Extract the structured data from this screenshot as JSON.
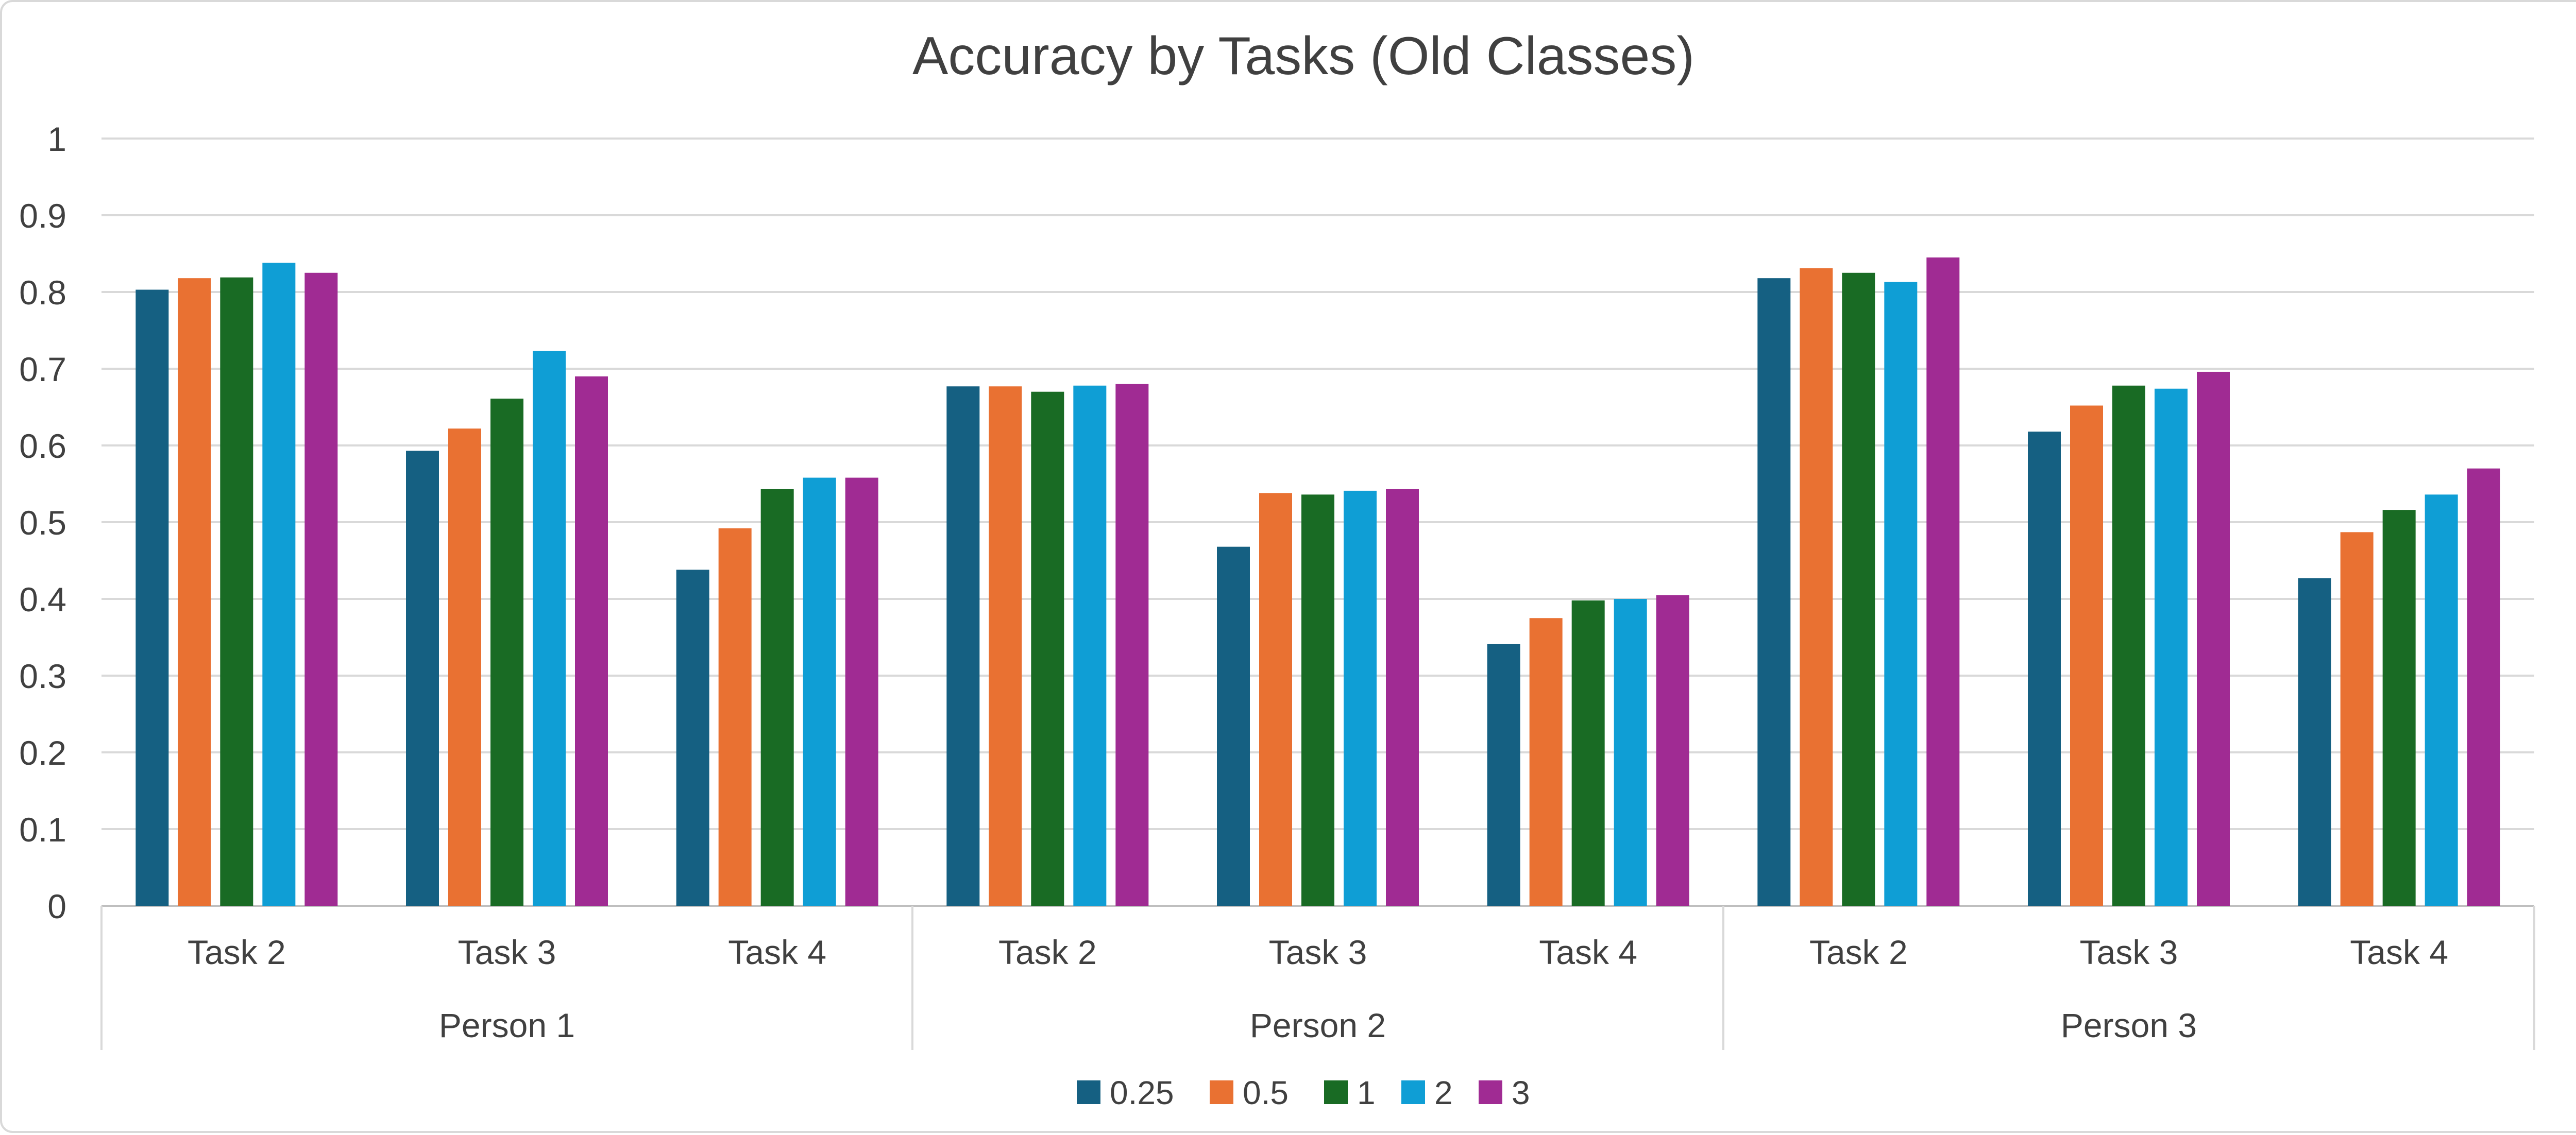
{
  "chart_data": {
    "type": "bar",
    "title": "Accuracy by Tasks (Old Classes)",
    "xlabel": "",
    "ylabel": "",
    "ylim": [
      0,
      1
    ],
    "yticks": [
      "0",
      "0.1",
      "0.2",
      "0.3",
      "0.4",
      "0.5",
      "0.6",
      "0.7",
      "0.8",
      "0.9",
      "1"
    ],
    "grid": true,
    "legend_position": "bottom",
    "groups": [
      "Person 1",
      "Person 2",
      "Person 3"
    ],
    "categories": [
      "Task 2",
      "Task 3",
      "Task 4",
      "Task 2",
      "Task 3",
      "Task 4",
      "Task 2",
      "Task 3",
      "Task 4"
    ],
    "series": [
      {
        "name": "0.25",
        "color": "#156082",
        "values": [
          0.803,
          0.593,
          0.438,
          0.677,
          0.468,
          0.341,
          0.818,
          0.618,
          0.427
        ]
      },
      {
        "name": "0.5",
        "color": "#E97132",
        "values": [
          0.818,
          0.622,
          0.492,
          0.677,
          0.538,
          0.375,
          0.831,
          0.652,
          0.487
        ]
      },
      {
        "name": "1",
        "color": "#196B24",
        "values": [
          0.819,
          0.661,
          0.543,
          0.67,
          0.536,
          0.398,
          0.825,
          0.678,
          0.516
        ]
      },
      {
        "name": "2",
        "color": "#0F9ED5",
        "values": [
          0.838,
          0.723,
          0.558,
          0.678,
          0.541,
          0.4,
          0.813,
          0.674,
          0.536
        ]
      },
      {
        "name": "3",
        "color": "#A02B93",
        "values": [
          0.825,
          0.69,
          0.558,
          0.68,
          0.543,
          0.405,
          0.845,
          0.696,
          0.57
        ]
      }
    ]
  }
}
